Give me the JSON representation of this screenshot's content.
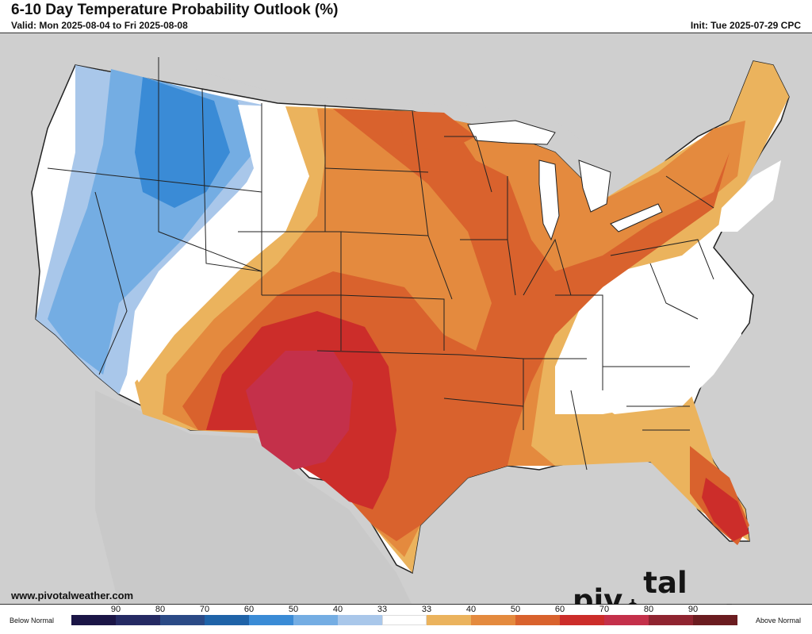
{
  "header": {
    "title": "6-10 Day Temperature Probability Outlook (%)",
    "valid": "Valid: Mon 2025-08-04 to Fri 2025-08-08",
    "init": "Init: Tue 2025-07-29 CPC"
  },
  "footer": {
    "website": "www.pivotalweather.com",
    "brand_left": "piv",
    "brand_right": "tal weather"
  },
  "legend": {
    "below_label": "Below Normal",
    "above_label": "Above Normal",
    "ticks": [
      "90",
      "80",
      "70",
      "60",
      "50",
      "40",
      "33",
      "33",
      "40",
      "50",
      "60",
      "70",
      "80",
      "90"
    ],
    "colors": [
      "#1b1546",
      "#252a63",
      "#2b4a86",
      "#1f63a8",
      "#3a8bd6",
      "#74ade3",
      "#a9c7ea",
      "#ffffff",
      "#ebb35d",
      "#e48a3e",
      "#d9622d",
      "#cc2d2a",
      "#c4304a",
      "#8f2430",
      "#6b1c20"
    ]
  },
  "map": {
    "colors": {
      "background": "#cfcfcf",
      "land": "#ffffff",
      "below40": "#a9c7ea",
      "below50": "#74ade3",
      "below60": "#3a8bd6",
      "above40": "#ebb35d",
      "above50": "#e48a3e",
      "above60": "#d9622d",
      "above70": "#cc2d2a",
      "above80": "#c4304a"
    }
  }
}
